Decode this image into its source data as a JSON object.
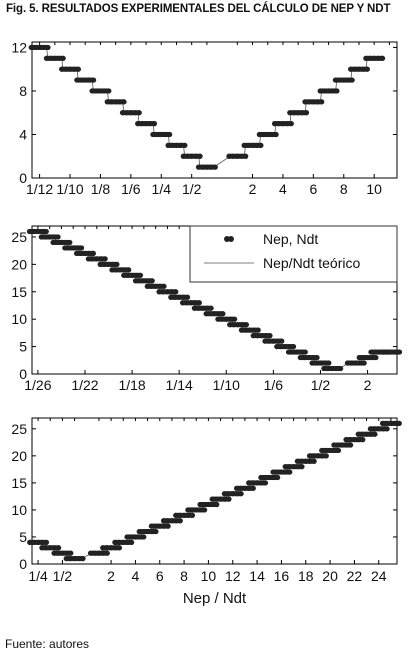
{
  "figure": {
    "title": "Fig. 5. RESULTADOS EXPERIMENTALES DEL CÁLCULO DE NEP Y NDT",
    "source": "Fuente: autores",
    "xlabel": "Nep / Ndt"
  },
  "legend": {
    "entries": [
      {
        "label": "Nep, Ndt",
        "marker": "dots"
      },
      {
        "label": "Nep/Ndt teórico",
        "marker": "line"
      }
    ]
  },
  "colors": {
    "points": "#222222",
    "line": "#555555",
    "axes": "#000000"
  },
  "chart_data": [
    {
      "type": "scatter",
      "panel": "top",
      "x_label": "",
      "y_label": "",
      "x_ticks": [
        "1/12",
        "1/10",
        "1/8",
        "1/6",
        "1/4",
        "1/2",
        "2",
        "4",
        "6",
        "8",
        "10"
      ],
      "y_ticks": [
        "0",
        "4",
        "8",
        "12"
      ],
      "ylim": [
        0,
        12.5
      ],
      "xlim": [
        -12,
        11
      ],
      "series": [
        {
          "x": [
            -12,
            -11,
            -10,
            -9,
            -8,
            -7,
            -6,
            -5,
            -4,
            -3,
            -2,
            -1,
            1,
            2,
            3,
            4,
            5,
            6,
            7,
            8,
            9,
            10
          ],
          "values": [
            12,
            11,
            10,
            9,
            8,
            7,
            6,
            5,
            4,
            3,
            2,
            1,
            2,
            3,
            4,
            5,
            6,
            7,
            8,
            9,
            10,
            11
          ]
        }
      ]
    },
    {
      "type": "scatter",
      "panel": "middle",
      "x_label": "",
      "y_label": "",
      "x_ticks": [
        "1/26",
        "1/22",
        "1/18",
        "1/14",
        "1/10",
        "1/6",
        "1/2",
        "2"
      ],
      "y_ticks": [
        "0",
        "5",
        "10",
        "15",
        "20",
        "25"
      ],
      "ylim": [
        0,
        27
      ],
      "xlim": [
        -26,
        4
      ],
      "legend_position": "top-right",
      "series": [
        {
          "x": [
            -26,
            -25,
            -24,
            -23,
            -22,
            -21,
            -20,
            -19,
            -18,
            -17,
            -16,
            -15,
            -14,
            -13,
            -12,
            -11,
            -10,
            -9,
            -8,
            -7,
            -6,
            -5,
            -4,
            -3,
            -2,
            -1,
            1,
            2,
            3,
            4
          ],
          "values": [
            26,
            25,
            24,
            23,
            22,
            21,
            20,
            19,
            18,
            17,
            16,
            15,
            14,
            13,
            12,
            11,
            10,
            9,
            8,
            7,
            6,
            5,
            4,
            3,
            2,
            1,
            2,
            3,
            4,
            4
          ]
        }
      ]
    },
    {
      "type": "scatter",
      "panel": "bottom",
      "x_label": "Nep / Ndt",
      "y_label": "",
      "x_ticks": [
        "1/4",
        "1/2",
        "2",
        "4",
        "6",
        "8",
        "10",
        "12",
        "14",
        "16",
        "18",
        "20",
        "22",
        "24"
      ],
      "y_ticks": [
        "0",
        "5",
        "10",
        "15",
        "20",
        "25"
      ],
      "ylim": [
        0,
        27
      ],
      "xlim": [
        -4,
        25
      ],
      "series": [
        {
          "x": [
            -4,
            -3,
            -2,
            -1,
            1,
            2,
            3,
            4,
            5,
            6,
            7,
            8,
            9,
            10,
            11,
            12,
            13,
            14,
            15,
            16,
            17,
            18,
            19,
            20,
            21,
            22,
            23,
            24,
            25
          ],
          "values": [
            4,
            3,
            2,
            1,
            2,
            3,
            4,
            5,
            6,
            7,
            8,
            9,
            10,
            11,
            12,
            13,
            14,
            15,
            16,
            17,
            18,
            19,
            20,
            21,
            22,
            23,
            24,
            25,
            26
          ]
        }
      ]
    }
  ]
}
